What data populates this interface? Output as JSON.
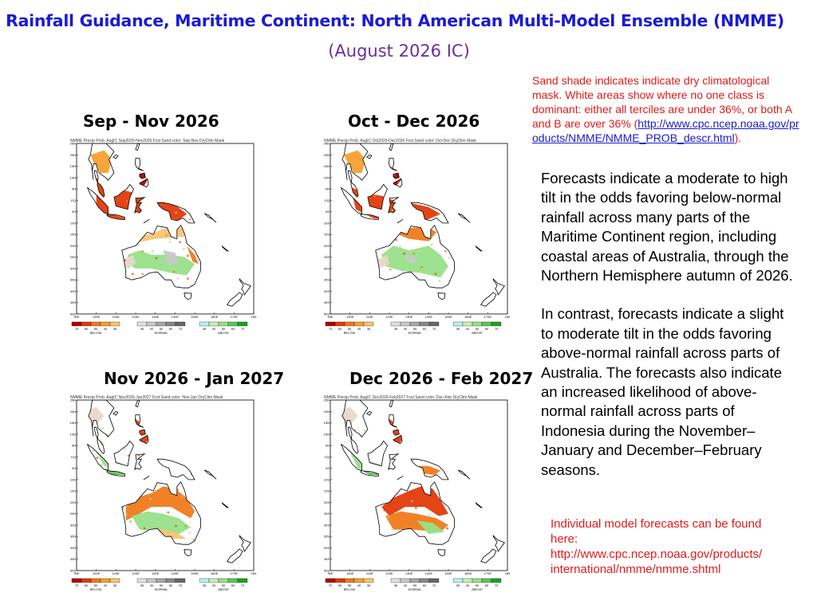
{
  "header": {
    "title": "Rainfall Guidance, Maritime Continent: North American Multi-Model Ensemble (NMME)",
    "subtitle": "(August 2026 IC)"
  },
  "note": {
    "text_pre": "Sand shade indicates indicate dry climatological mask. White areas show where no one class is dominant: either all terciles are under 36%, or both A and B are over 36% (",
    "link": "http://www.cpc.ncep.noaa.gov/products/NMME/NMME_PROB_descr.html",
    "text_post": ")."
  },
  "panels": [
    {
      "title": "Sep - Nov 2026",
      "map_header": "NMME Precip Prob. AugIC   Sep2026-Nov2026 Fcst   Sand color: Sep-Nov DryClim Mask"
    },
    {
      "title": "Oct - Dec 2026",
      "map_header": "NMME Precip Prob. AugIC   Oct2026-Dec2026 Fcst   Sand color: Oct-Dec DryClim Mask"
    },
    {
      "title": "Nov 2026 - Jan 2027",
      "map_header": "NMME Precip Prob. AugIC   Nov2026-Jan2027 Fcst   Sand color: Nov-Jan DryClim Mask"
    },
    {
      "title": "Dec 2026 - Feb 2027",
      "map_header": "NMME Precip Prob. AugIC   Dec2026-Feb2027 Fcst   Sand color: Dec-Feb DryClim Mask"
    }
  ],
  "map": {
    "lat_labels": [
      "25N",
      "20N",
      "15N",
      "10N",
      "5N",
      "EQ",
      "5S",
      "10S",
      "15S",
      "20S",
      "25S",
      "30S",
      "35S",
      "40S",
      "45S",
      "50S"
    ],
    "lon_labels": [
      "90E",
      "100E",
      "110E",
      "120E",
      "130E",
      "140E",
      "150E",
      "160E",
      "170E",
      "180"
    ],
    "legend": {
      "below_ticks": [
        "70",
        "60",
        "50",
        "40",
        "36"
      ],
      "normal_ticks": [
        "36",
        "40",
        "50",
        "60",
        "70"
      ],
      "above_ticks": [
        "36",
        "40",
        "50",
        "60",
        "70"
      ],
      "below_label": "BELOW",
      "normal_label": "NORMAL",
      "above_label": "ABOVE",
      "below_colors": [
        "#b00000",
        "#e33a0a",
        "#f07a1a",
        "#f5a030",
        "#f8c470"
      ],
      "normal_colors": [
        "#e0e0e0",
        "#c8c8c8",
        "#a8a8a8",
        "#888888",
        "#666666"
      ],
      "above_colors": [
        "#b8f0f0",
        "#c8f0b0",
        "#98e088",
        "#58c858",
        "#20a020"
      ]
    }
  },
  "body": {
    "para1": "Forecasts indicate a moderate to high tilt in the odds favoring below-normal rainfall across many parts of the Maritime Continent region, including coastal areas of Australia, through the Northern Hemisphere autumn of 2026.",
    "para2": "In contrast, forecasts indicate a slight to moderate tilt in the odds favoring above-normal rainfall across parts of Australia. The forecasts also indicate an increased likelihood of above-normal rainfall across parts of Indonesia during the November–January and December–February seasons."
  },
  "footer_note": {
    "line1": "Individual model forecasts can be found",
    "line2": "here:",
    "line3": "http://www.cpc.ncep.noaa.gov/products/",
    "line4": "international/nmme/nmme.shtml"
  }
}
